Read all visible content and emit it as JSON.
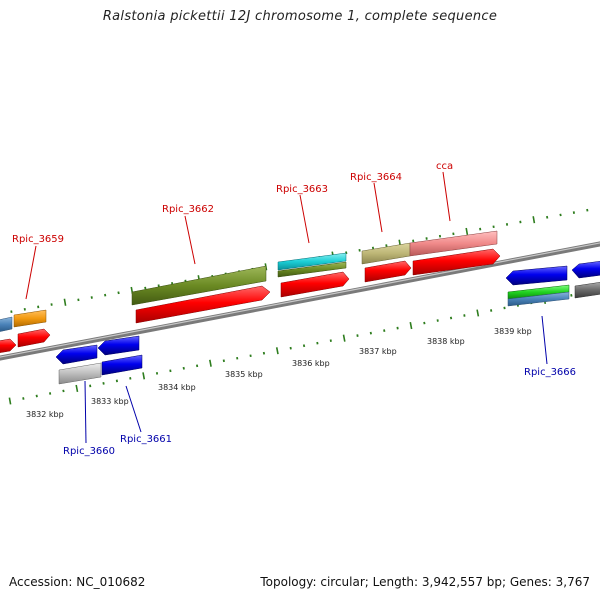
{
  "title": "Ralstonia pickettii 12J chromosome 1, complete sequence",
  "footer": {
    "accession": "Accession: NC_010682",
    "summary": "Topology: circular; Length: 3,942,557 bp; Genes: 3,767"
  },
  "scale": {
    "labels": [
      "3832 kbp",
      "3833 kbp",
      "3834 kbp",
      "3835 kbp",
      "3836 kbp",
      "3837 kbp",
      "3838 kbp",
      "3839 kbp"
    ]
  },
  "colors": {
    "forward_label": "#cc0000",
    "reverse_label": "#0000aa",
    "cds": "#ff0000",
    "tick": "#2e7d1e"
  },
  "genes": [
    {
      "label": "Rpic_3659",
      "strand": "forward"
    },
    {
      "label": "Rpic_3660",
      "strand": "reverse"
    },
    {
      "label": "Rpic_3661",
      "strand": "reverse"
    },
    {
      "label": "Rpic_3662",
      "strand": "forward"
    },
    {
      "label": "Rpic_3663",
      "strand": "forward"
    },
    {
      "label": "Rpic_3664",
      "strand": "forward"
    },
    {
      "label": "cca",
      "strand": "forward"
    },
    {
      "label": "Rpic_3666",
      "strand": "reverse"
    }
  ]
}
